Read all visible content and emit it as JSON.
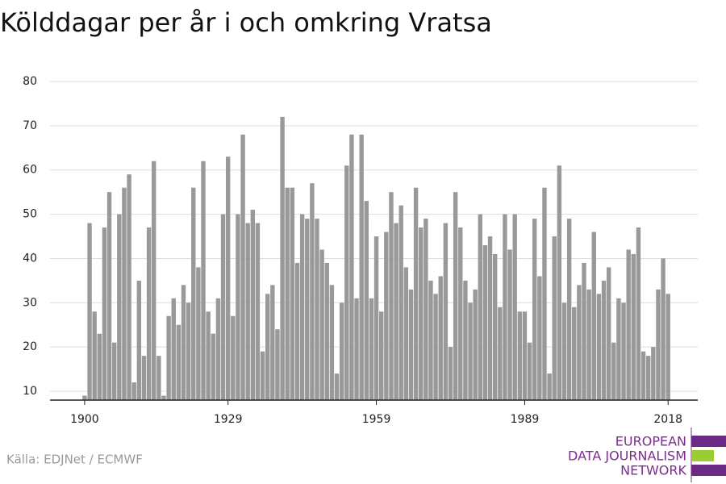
{
  "chart_data": {
    "type": "bar",
    "title": "Kölddagar per år i och omkring Vratsa",
    "source": "Källa: EDJNet / ECMWF",
    "logo": [
      "EUROPEAN",
      "DATA JOURNALISM",
      "NETWORK"
    ],
    "color": "#999999",
    "grid": true,
    "x": [
      1900,
      1901,
      1902,
      1903,
      1904,
      1905,
      1906,
      1907,
      1908,
      1909,
      1910,
      1911,
      1912,
      1913,
      1914,
      1915,
      1916,
      1917,
      1918,
      1919,
      1920,
      1921,
      1922,
      1923,
      1924,
      1925,
      1926,
      1927,
      1928,
      1929,
      1930,
      1931,
      1932,
      1933,
      1934,
      1935,
      1936,
      1937,
      1938,
      1939,
      1940,
      1941,
      1942,
      1943,
      1944,
      1945,
      1946,
      1947,
      1948,
      1949,
      1950,
      1951,
      1952,
      1953,
      1954,
      1955,
      1956,
      1957,
      1958,
      1959,
      1960,
      1961,
      1962,
      1963,
      1964,
      1965,
      1966,
      1967,
      1968,
      1969,
      1970,
      1971,
      1972,
      1973,
      1974,
      1975,
      1976,
      1977,
      1978,
      1979,
      1980,
      1981,
      1982,
      1983,
      1984,
      1985,
      1986,
      1987,
      1988,
      1989,
      1990,
      1991,
      1992,
      1993,
      1994,
      1995,
      1996,
      1997,
      1998,
      1999,
      2000,
      2001,
      2002,
      2003,
      2004,
      2005,
      2006,
      2007,
      2008,
      2009,
      2010,
      2011,
      2012,
      2013,
      2014,
      2015,
      2016,
      2017,
      2018
    ],
    "values": [
      9,
      48,
      28,
      23,
      47,
      55,
      21,
      50,
      56,
      59,
      12,
      35,
      18,
      47,
      62,
      18,
      9,
      27,
      31,
      25,
      34,
      30,
      56,
      38,
      62,
      28,
      23,
      31,
      50,
      63,
      27,
      50,
      68,
      48,
      51,
      48,
      19,
      32,
      34,
      24,
      72,
      56,
      56,
      39,
      50,
      49,
      57,
      49,
      42,
      39,
      34,
      14,
      30,
      61,
      68,
      31,
      68,
      53,
      31,
      45,
      28,
      46,
      55,
      48,
      52,
      38,
      33,
      56,
      47,
      49,
      35,
      32,
      36,
      48,
      20,
      55,
      47,
      35,
      30,
      33,
      50,
      43,
      45,
      41,
      29,
      50,
      42,
      50,
      28,
      28,
      21,
      49,
      36,
      56,
      14,
      45,
      61,
      30,
      49,
      29,
      34,
      39,
      33,
      46,
      32,
      35,
      38,
      21,
      31,
      30,
      42,
      41,
      47,
      19,
      18,
      20,
      33,
      40,
      32
    ],
    "xlim": [
      1893,
      2024
    ],
    "xticks": [
      1900,
      1929,
      1959,
      1989,
      2018
    ],
    "ylim": [
      8,
      81
    ],
    "yticks": [
      10,
      20,
      30,
      40,
      50,
      60,
      70,
      80
    ]
  }
}
